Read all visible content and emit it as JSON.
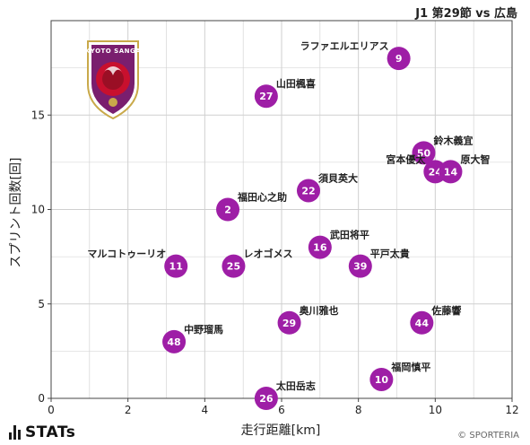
{
  "title": "J1 第29節 vs 広島",
  "footer": {
    "brand": "STATs",
    "copyright": "© SPORTERIA"
  },
  "crest": {
    "text": "KYOTO SANGA",
    "primary_color": "#7a1e6e",
    "accent_color": "#c8102e"
  },
  "colors": {
    "point": "#9e1ea6",
    "grid": "#cfcfcf"
  },
  "chart_data": {
    "type": "scatter",
    "xlabel": "走行距離[km]",
    "ylabel": "スプリント回数[回]",
    "xlim": [
      0,
      12
    ],
    "ylim": [
      0,
      20
    ],
    "xticks": [
      0,
      2,
      4,
      6,
      8,
      10,
      12
    ],
    "yticks": [
      0,
      5,
      10,
      15
    ],
    "grid": true,
    "points": [
      {
        "number": "9",
        "name": "ラファエルエリアス",
        "x": 9.05,
        "y": 18,
        "label_side": "left"
      },
      {
        "number": "27",
        "name": "山田楓喜",
        "x": 5.6,
        "y": 16,
        "label_side": "right"
      },
      {
        "number": "50",
        "name": "鈴木義宜",
        "x": 9.7,
        "y": 13,
        "label_side": "right"
      },
      {
        "number": "24",
        "name": "宮本優太",
        "x": 10.0,
        "y": 12,
        "label_side": "left"
      },
      {
        "number": "14",
        "name": "原大智",
        "x": 10.4,
        "y": 12,
        "label_side": "right"
      },
      {
        "number": "22",
        "name": "須貝英大",
        "x": 6.7,
        "y": 11,
        "label_side": "right"
      },
      {
        "number": "2",
        "name": "福田心之助",
        "x": 4.6,
        "y": 10,
        "label_side": "right"
      },
      {
        "number": "16",
        "name": "武田将平",
        "x": 7.0,
        "y": 8,
        "label_side": "right"
      },
      {
        "number": "11",
        "name": "マルコトゥーリオ",
        "x": 3.25,
        "y": 7,
        "label_side": "left"
      },
      {
        "number": "25",
        "name": "レオゴメス",
        "x": 4.75,
        "y": 7,
        "label_side": "right"
      },
      {
        "number": "39",
        "name": "平戸太貴",
        "x": 8.05,
        "y": 7,
        "label_side": "right"
      },
      {
        "number": "29",
        "name": "奥川雅也",
        "x": 6.2,
        "y": 4,
        "label_side": "right"
      },
      {
        "number": "44",
        "name": "佐藤響",
        "x": 9.65,
        "y": 4,
        "label_side": "right"
      },
      {
        "number": "48",
        "name": "中野瑠馬",
        "x": 3.2,
        "y": 3,
        "label_side": "right"
      },
      {
        "number": "10",
        "name": "福岡慎平",
        "x": 8.6,
        "y": 1,
        "label_side": "right"
      },
      {
        "number": "26",
        "name": "太田岳志",
        "x": 5.6,
        "y": 0,
        "label_side": "right"
      }
    ]
  }
}
